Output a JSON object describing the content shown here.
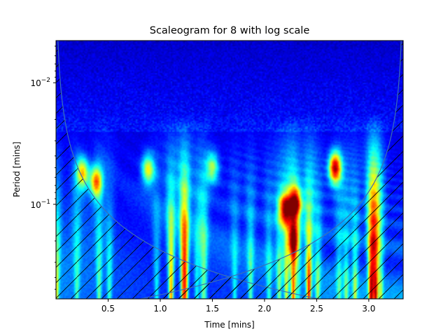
{
  "chart_data": {
    "type": "heatmap",
    "title": "Scaleogram for 8 with log scale",
    "xlabel": "Time [mins]",
    "ylabel": "Period [mins]",
    "xlim": [
      0.0,
      3.33
    ],
    "ylim_period": [
      0.6,
      0.0045
    ],
    "y_scale": "log",
    "y_inverted": true,
    "x_tick_labels": [
      "0.5",
      "1.0",
      "1.5",
      "2.0",
      "2.5",
      "3.0"
    ],
    "x_tick_values": [
      0.5,
      1.0,
      1.5,
      2.0,
      2.5,
      3.0
    ],
    "y_tick_labels": [
      {
        "base": "10",
        "exp": "−2",
        "value": 0.01
      },
      {
        "base": "10",
        "exp": "−1",
        "value": 0.1
      }
    ],
    "colormap": "jet",
    "cone_of_influence": true,
    "hatch": "diagonal",
    "hotspots": [
      {
        "time": 2.68,
        "period": 0.05,
        "intensity": 1.0
      },
      {
        "time": 2.3,
        "period": 0.1,
        "intensity": 0.85
      },
      {
        "time": 2.2,
        "period": 0.11,
        "intensity": 0.8
      },
      {
        "time": 0.38,
        "period": 0.065,
        "intensity": 0.75
      },
      {
        "time": 0.25,
        "period": 0.055,
        "intensity": 0.65
      },
      {
        "time": 0.88,
        "period": 0.052,
        "intensity": 0.6
      },
      {
        "time": 2.28,
        "period": 0.2,
        "intensity": 0.7
      },
      {
        "time": 1.5,
        "period": 0.05,
        "intensity": 0.5
      }
    ]
  }
}
